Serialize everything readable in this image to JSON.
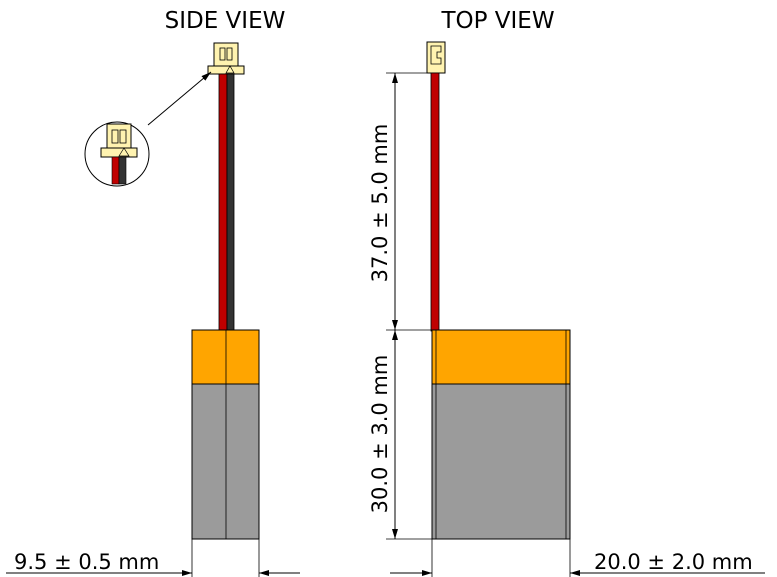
{
  "views": {
    "side_title": "SIDE VIEW",
    "top_title": "TOP VIEW"
  },
  "dimensions": {
    "thickness": "9.5 ± 0.5 mm",
    "width": "20.0 ± 2.0 mm",
    "wire_length": "37.0 ± 5.0 mm",
    "cell_length": "30.0 ± 3.0 mm"
  },
  "colors": {
    "label_orange": "#FFA500",
    "cell_gray": "#9B9B9B",
    "wire_red": "#C00000",
    "wire_black": "#333333",
    "connector": "#FFF3B0"
  }
}
